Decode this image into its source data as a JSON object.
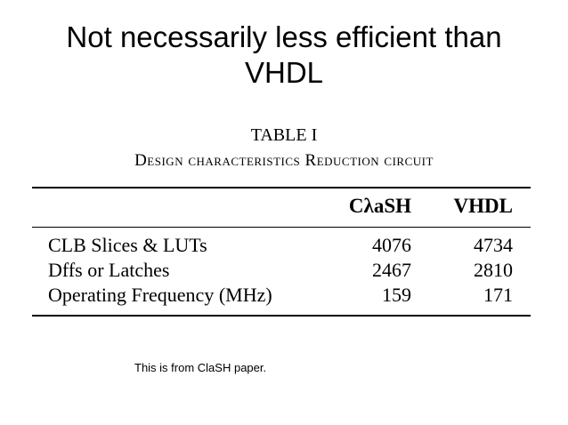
{
  "slide": {
    "title_line1": "Not necessarily less efficient than",
    "title_line2": "VHDL",
    "note": "This is from ClaSH paper."
  },
  "table": {
    "caption_number": "TABLE I",
    "caption_title": "Design characteristics Reduction circuit",
    "columns": [
      "CλaSH",
      "VHDL"
    ],
    "rows": [
      {
        "label": "CLB Slices & LUTs",
        "clash": "4076",
        "vhdl": "4734"
      },
      {
        "label": "Dffs or Latches",
        "clash": "2467",
        "vhdl": "2810"
      },
      {
        "label": "Operating Frequency (MHz)",
        "clash": "159",
        "vhdl": "171"
      }
    ]
  }
}
